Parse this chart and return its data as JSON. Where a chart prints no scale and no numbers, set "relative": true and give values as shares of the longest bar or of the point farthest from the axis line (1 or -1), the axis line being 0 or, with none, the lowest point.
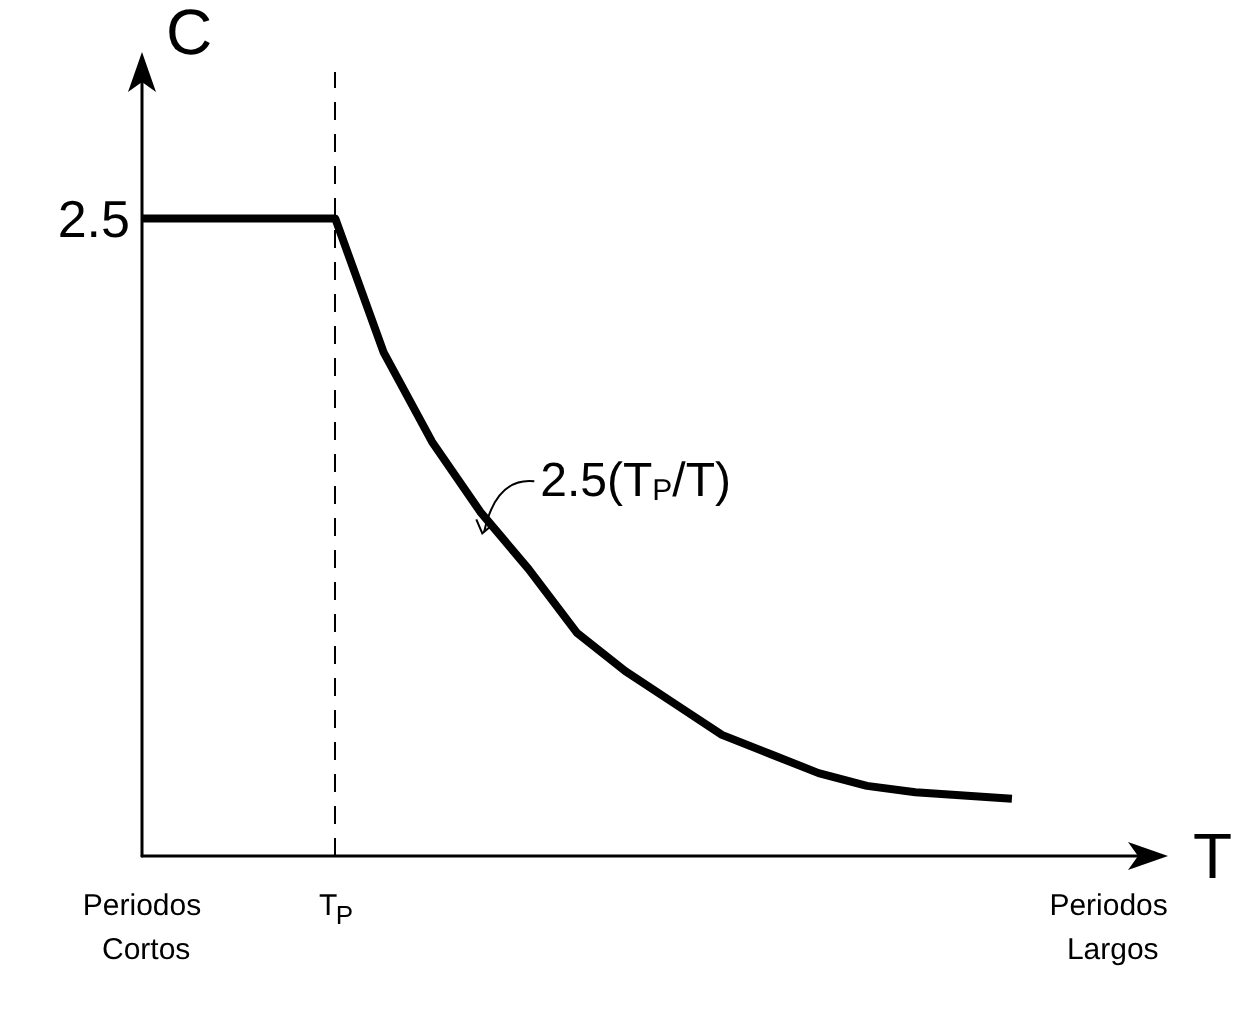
{
  "chart_data": {
    "type": "line",
    "relative": true,
    "xlabel": "T",
    "ylabel": "C",
    "categories": [
      "Periodos Cortos",
      null,
      null,
      null,
      "T$_{P}$",
      null,
      null,
      null,
      null,
      null,
      null,
      null,
      null,
      null,
      null,
      null,
      null,
      null,
      null,
      null,
      "Periodos Largos",
      null
    ],
    "series": [
      {
        "color": "#000000",
        "values": [
          1,
          1,
          1,
          1,
          1,
          0.79,
          0.65,
          0.54,
          0.45,
          0.35,
          0.29,
          0.24,
          0.19,
          0.16,
          0.13,
          0.11,
          0.1,
          0.095,
          0.09,
          null,
          null,
          null
        ]
      }
    ],
    "ref_lines": [
      {
        "axis": "x",
        "value": "T$_{P}$",
        "label": null,
        "line_style": "dashed",
        "color": "#000000"
      }
    ],
    "annotations": [
      {
        "text": "2.5",
        "x": "Periodos Cortos",
        "y": 1
      },
      "2.5(T$_{P}$/T)"
    ],
    "marker": "none",
    "line_style": "solid",
    "grid": false
  }
}
